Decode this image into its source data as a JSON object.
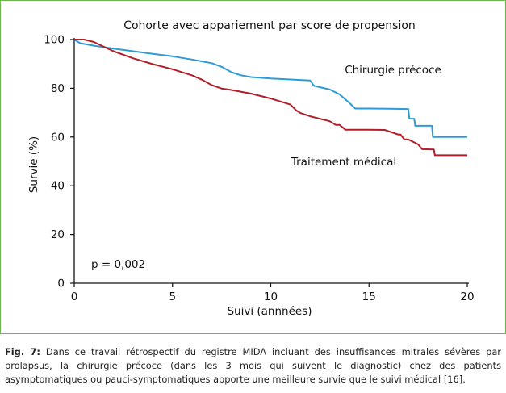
{
  "chart_data": {
    "type": "line",
    "title": "Cohorte avec appariement par score de propension",
    "xlabel": "Suivi (annnées)",
    "ylabel": "Survie (%)",
    "xlim": [
      0,
      20
    ],
    "ylim": [
      0,
      100
    ],
    "xticks": [
      0,
      5,
      10,
      15,
      20
    ],
    "yticks": [
      0,
      20,
      40,
      60,
      80,
      100
    ],
    "grid": false,
    "annotation": "p = 0,002",
    "series": [
      {
        "name": "Chirurgie précoce",
        "color": "#2e9bd6",
        "x": [
          0,
          0.3,
          1,
          2,
          3,
          4,
          5,
          6,
          7,
          7.5,
          8,
          8.5,
          9,
          10,
          11,
          12,
          12.2,
          13,
          13.5,
          14,
          14.3,
          15,
          16,
          17,
          17.05,
          17.3,
          17.35,
          18,
          18.2,
          18.25,
          20
        ],
        "y": [
          100,
          98.5,
          97.5,
          96.3,
          95.2,
          94.1,
          93.1,
          91.8,
          90.3,
          88.8,
          86.6,
          85.3,
          84.6,
          84.0,
          83.6,
          83.2,
          81.0,
          79.5,
          77.5,
          74.0,
          71.7,
          71.7,
          71.6,
          71.5,
          67.5,
          67.5,
          64.6,
          64.6,
          64.6,
          60.0,
          60.0
        ]
      },
      {
        "name": "Traitement médical",
        "color": "#b0202a",
        "x": [
          0,
          0.5,
          1,
          1.5,
          2,
          3,
          4,
          5,
          6,
          6.5,
          7,
          7.5,
          8,
          9,
          10,
          11,
          11.3,
          11.5,
          12,
          13,
          13.3,
          13.5,
          13.8,
          14.2,
          15,
          15.8,
          16.5,
          16.6,
          16.8,
          17,
          17.5,
          17.7,
          18.3,
          18.35,
          20
        ],
        "y": [
          100,
          100,
          99,
          97.1,
          95.2,
          92.3,
          89.9,
          87.8,
          85.3,
          83.5,
          81.3,
          79.9,
          79.3,
          77.8,
          75.8,
          73.3,
          70.9,
          69.9,
          68.5,
          66.5,
          65.0,
          65.0,
          63.0,
          63.0,
          63.0,
          62.9,
          61.0,
          61.0,
          59.0,
          59.0,
          57.0,
          55.0,
          54.9,
          52.5,
          52.5
        ]
      }
    ]
  },
  "caption": {
    "label": "Fig. 7:",
    "text": "Dans ce travail rétrospectif du registre MIDA incluant des insuffisances mitrales sévères par prolapsus, la chirurgie précoce (dans les 3 mois qui suivent le diagnostic) chez des patients asymptomatiques ou pauci-symptomatiques apporte une meilleure survie que le suivi médical [16]."
  }
}
